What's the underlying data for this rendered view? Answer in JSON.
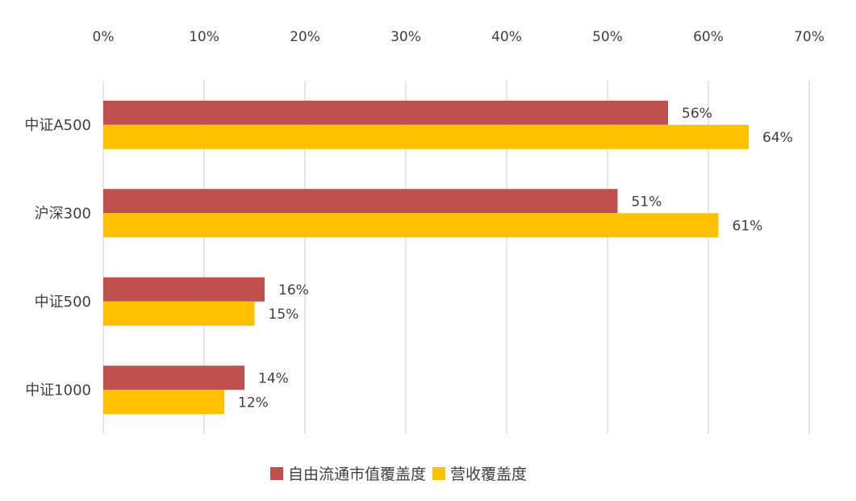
{
  "chart_data": {
    "type": "bar",
    "orientation": "horizontal",
    "categories": [
      "中证A500",
      "沪深300",
      "中证500",
      "中证1000"
    ],
    "series": [
      {
        "name": "自由流通市值覆盖度",
        "values": [
          56,
          51,
          16,
          14
        ],
        "labels": [
          "56%",
          "51%",
          "16%",
          "14%"
        ],
        "color": "#C0504D"
      },
      {
        "name": "营收覆盖度",
        "values": [
          64,
          61,
          15,
          12
        ],
        "labels": [
          "64%",
          "61%",
          "15%",
          "12%"
        ],
        "color": "#FFC000"
      }
    ],
    "x_ticks": [
      "0%",
      "10%",
      "20%",
      "30%",
      "40%",
      "50%",
      "60%",
      "70%"
    ],
    "xlim": [
      0,
      70
    ],
    "grid": "vertical",
    "legend_position": "bottom",
    "x_axis_position": "top"
  }
}
